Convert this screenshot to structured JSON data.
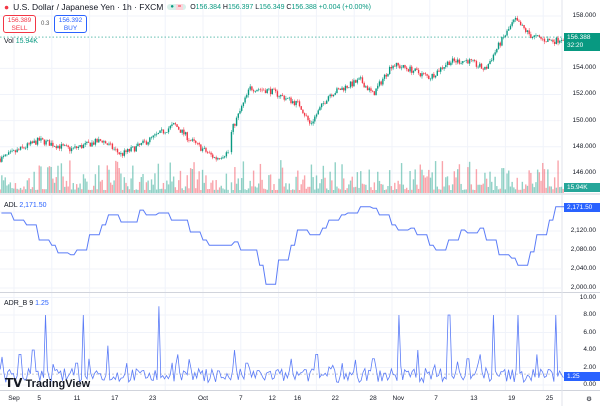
{
  "header": {
    "symbol": "U.S. Dollar / Japanese Yen · 1h · FXCM",
    "open_label": "O",
    "open": "156.384",
    "high_label": "H",
    "high": "156.397",
    "low_label": "L",
    "low": "156.349",
    "close_label": "C",
    "close": "156.388",
    "change": "+0.004 (+0.00%)"
  },
  "trade": {
    "sell_price": "156.389",
    "sell_label": "SELL",
    "spread": "0.3",
    "buy_price": "156.392",
    "buy_label": "BUY"
  },
  "volume": {
    "label": "Vol",
    "value": "15.94K"
  },
  "price_tag": {
    "price": "156.388",
    "countdown": "32:20"
  },
  "adl": {
    "label": "ADL",
    "value": "2,171.50"
  },
  "adr": {
    "label": "ADR_B",
    "param": "9",
    "value": "1.25"
  },
  "logo": "TradingView",
  "colors": {
    "up": "#089981",
    "down": "#f23645",
    "line": "#5b7cf7",
    "accent": "#2962ff"
  },
  "chart_data": [
    {
      "type": "candlestick",
      "title": "USDJPY 1h",
      "x_axis": {
        "unit": "day since Sep 1",
        "ticks": [
          {
            "label": "Sep",
            "day": 0
          },
          {
            "label": "5",
            "day": 4
          },
          {
            "label": "11",
            "day": 10
          },
          {
            "label": "17",
            "day": 16
          },
          {
            "label": "23",
            "day": 22
          },
          {
            "label": "Oct",
            "day": 30
          },
          {
            "label": "7",
            "day": 36
          },
          {
            "label": "12",
            "day": 41
          },
          {
            "label": "16",
            "day": 45
          },
          {
            "label": "22",
            "day": 51
          },
          {
            "label": "28",
            "day": 57
          },
          {
            "label": "Nov",
            "day": 61
          },
          {
            "label": "7",
            "day": 67
          },
          {
            "label": "13",
            "day": 73
          },
          {
            "label": "19",
            "day": 79
          },
          {
            "label": "25",
            "day": 85
          }
        ]
      },
      "ylim": [
        145.5,
        158.6
      ],
      "yticks": [
        "158.000",
        "154.000",
        "152.000",
        "150.000",
        "148.000",
        "146.000"
      ],
      "close_keypoints": [
        [
          -2,
          147.1
        ],
        [
          4,
          148.5
        ],
        [
          9,
          147.8
        ],
        [
          14,
          148.5
        ],
        [
          17,
          147.4
        ],
        [
          20,
          148.1
        ],
        [
          25.5,
          149.7
        ],
        [
          28,
          148.5
        ],
        [
          32,
          147.1
        ],
        [
          34,
          147.6
        ],
        [
          34.6,
          149.3
        ],
        [
          37.5,
          152.5
        ],
        [
          40.6,
          152.3
        ],
        [
          45.4,
          151.2
        ],
        [
          47,
          149.7
        ],
        [
          50,
          152
        ],
        [
          55,
          153.1
        ],
        [
          57,
          152
        ],
        [
          60,
          154.3
        ],
        [
          63,
          153.9
        ],
        [
          66,
          153.3
        ],
        [
          69,
          154.5
        ],
        [
          72,
          154.6
        ],
        [
          74.8,
          153.9
        ],
        [
          77,
          155.8
        ],
        [
          79.5,
          157.7
        ],
        [
          82,
          156.5
        ],
        [
          84,
          156.2
        ],
        [
          86,
          156.1
        ],
        [
          87.3,
          156.4
        ]
      ]
    },
    {
      "type": "line",
      "title": "ADL",
      "ylim": [
        1985,
        2185
      ],
      "yticks": [
        "2,160.00",
        "2,120.00",
        "2,080.00",
        "2,040.00",
        "2,000.00"
      ],
      "keypoints": [
        [
          -2,
          2158
        ],
        [
          0,
          2143
        ],
        [
          2,
          2133
        ],
        [
          4,
          2101
        ],
        [
          6,
          2090
        ],
        [
          7,
          2074
        ],
        [
          9,
          2070
        ],
        [
          10,
          2080
        ],
        [
          12,
          2112
        ],
        [
          14,
          2133
        ],
        [
          15,
          2154
        ],
        [
          17,
          2139
        ],
        [
          20,
          2164
        ],
        [
          21,
          2154
        ],
        [
          23,
          2158
        ],
        [
          25,
          2143
        ],
        [
          28,
          2118
        ],
        [
          30,
          2101
        ],
        [
          31,
          2090
        ],
        [
          35,
          2097
        ],
        [
          36,
          2080
        ],
        [
          39,
          2048
        ],
        [
          40,
          2008
        ],
        [
          42,
          2059
        ],
        [
          44,
          2090
        ],
        [
          45,
          2122
        ],
        [
          47,
          2112
        ],
        [
          49,
          2126
        ],
        [
          50,
          2143
        ],
        [
          52,
          2154
        ],
        [
          53,
          2158
        ],
        [
          55,
          2171
        ],
        [
          57,
          2168
        ],
        [
          58,
          2154
        ],
        [
          60,
          2133
        ],
        [
          61,
          2122
        ],
        [
          63,
          2126
        ],
        [
          64,
          2112
        ],
        [
          66,
          2090
        ],
        [
          67,
          2080
        ],
        [
          69,
          2101
        ],
        [
          71,
          2122
        ],
        [
          72,
          2116
        ],
        [
          74,
          2126
        ],
        [
          75,
          2101
        ],
        [
          77,
          2070
        ],
        [
          79,
          2063
        ],
        [
          80,
          2048
        ],
        [
          82,
          2076
        ],
        [
          83,
          2112
        ],
        [
          85,
          2143
        ],
        [
          86,
          2171
        ],
        [
          88,
          2171
        ]
      ]
    },
    {
      "type": "line",
      "title": "ADR_B 9",
      "ylim": [
        -0.5,
        10
      ],
      "yticks": [
        "10.00",
        "8.00",
        "6.00",
        "4.00",
        "2.00",
        "0.00"
      ],
      "baseline": 1.25,
      "spikes": [
        [
          1,
          3.5
        ],
        [
          3,
          4
        ],
        [
          5,
          8
        ],
        [
          10,
          2.5
        ],
        [
          11,
          8
        ],
        [
          12,
          3
        ],
        [
          15,
          4.5
        ],
        [
          18,
          2.5
        ],
        [
          23,
          9
        ],
        [
          26,
          3.5
        ],
        [
          35,
          4
        ],
        [
          37,
          2.5
        ],
        [
          44,
          3
        ],
        [
          48,
          3.5
        ],
        [
          52,
          2.5
        ],
        [
          57,
          3
        ],
        [
          61,
          8
        ],
        [
          64,
          4
        ],
        [
          69,
          8
        ],
        [
          72,
          3
        ],
        [
          74,
          3.5
        ],
        [
          76,
          8
        ],
        [
          80,
          8
        ],
        [
          83,
          3.5
        ],
        [
          86,
          8
        ]
      ]
    }
  ]
}
